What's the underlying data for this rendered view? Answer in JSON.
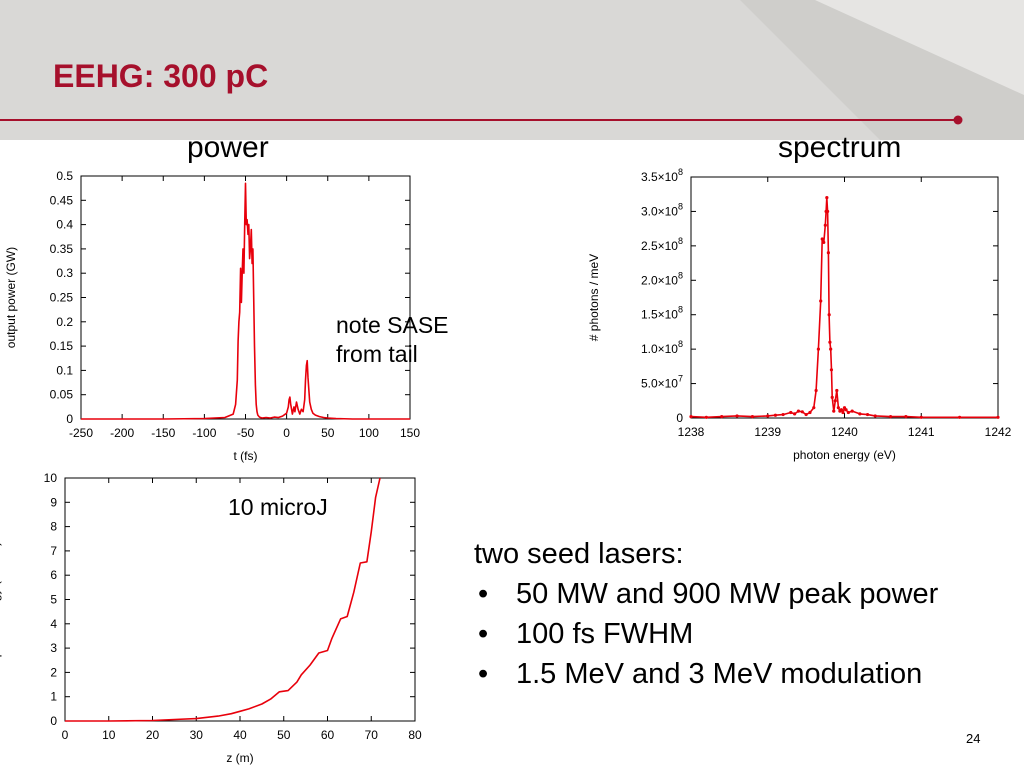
{
  "slide": {
    "title": "EEHG: 300 pC",
    "power_label": "power",
    "spectrum_label": "spectrum",
    "sase_note_line1": "note SASE",
    "sase_note_line2": "from tail",
    "energy_note": "10 microJ",
    "bullets_intro": "two seed lasers:",
    "bullets": [
      "50 MW and 900 MW peak power",
      "100 fs FWHM",
      "1.5 MeV and 3 MeV modulation"
    ],
    "bullet_marker": "•",
    "page_number": "24",
    "colors": {
      "title": "#a6102c",
      "rule": "#a6102c",
      "header_band": "#d9d8d6",
      "trace": "#e8000b"
    }
  },
  "chart_data": [
    {
      "type": "line",
      "xlabel": "t (fs)",
      "ylabel": "output power (GW)",
      "xlim": [
        -250,
        150
      ],
      "ylim": [
        0,
        0.5
      ],
      "xticks": [
        -250,
        -200,
        -150,
        -100,
        -50,
        0,
        50,
        100,
        150
      ],
      "xtick_labels": [
        "-250",
        "-200",
        "-150",
        "-100",
        "-50",
        "0",
        "50",
        "100",
        "150"
      ],
      "yticks": [
        0,
        0.05,
        0.1,
        0.15,
        0.2,
        0.25,
        0.3,
        0.35,
        0.4,
        0.45,
        0.5
      ],
      "ytick_labels": [
        "0",
        "0.05",
        "0.1",
        "0.15",
        "0.2",
        "0.25",
        "0.3",
        "0.35",
        "0.4",
        "0.45",
        "0.5"
      ],
      "series": [
        {
          "x": [
            -250,
            -200,
            -150,
            -100,
            -75,
            -65,
            -62,
            -60,
            -59,
            -58,
            -57,
            -56,
            -55,
            -54,
            -53,
            -52,
            -51,
            -50,
            -49,
            -48,
            -47,
            -46,
            -45,
            -44,
            -43,
            -42,
            -41,
            -40,
            -39,
            -38,
            -37,
            -36,
            -35,
            -33,
            -30,
            -25,
            -20,
            -15,
            -10,
            -5,
            0,
            2,
            3,
            4,
            5,
            6,
            7,
            9,
            10,
            12,
            14,
            16,
            18,
            20,
            22,
            23,
            24,
            25,
            26,
            28,
            30,
            32,
            35,
            40,
            45,
            50,
            60,
            80,
            100,
            150
          ],
          "y": [
            0,
            0,
            0,
            0.001,
            0.003,
            0.01,
            0.03,
            0.08,
            0.16,
            0.2,
            0.22,
            0.31,
            0.24,
            0.3,
            0.35,
            0.3,
            0.4,
            0.485,
            0.4,
            0.41,
            0.38,
            0.4,
            0.33,
            0.35,
            0.39,
            0.32,
            0.35,
            0.25,
            0.15,
            0.07,
            0.03,
            0.015,
            0.008,
            0.004,
            0.002,
            0.003,
            0.002,
            0.004,
            0.003,
            0.006,
            0.012,
            0.025,
            0.04,
            0.045,
            0.03,
            0.02,
            0.01,
            0.025,
            0.015,
            0.035,
            0.02,
            0.01,
            0.02,
            0.015,
            0.04,
            0.08,
            0.11,
            0.12,
            0.085,
            0.035,
            0.02,
            0.012,
            0.008,
            0.005,
            0.003,
            0.002,
            0.001,
            0,
            0,
            0
          ]
        }
      ]
    },
    {
      "type": "line",
      "xlabel": "photon energy (eV)",
      "ylabel": "# photons / meV",
      "xlim": [
        1238,
        1242
      ],
      "ylim": [
        0,
        350000000
      ],
      "xticks": [
        1238,
        1239,
        1240,
        1241,
        1242
      ],
      "xtick_labels": [
        "1238",
        "1239",
        "1240",
        "1241",
        "1242"
      ],
      "yticks": [
        0,
        50000000,
        100000000,
        150000000,
        200000000,
        250000000,
        300000000,
        350000000
      ],
      "ytick_labels": [
        {
          "mant": "0",
          "exp": ""
        },
        {
          "mant": "5.0×10",
          "exp": "7"
        },
        {
          "mant": "1.0×10",
          "exp": "8"
        },
        {
          "mant": "1.5×10",
          "exp": "8"
        },
        {
          "mant": "2.0×10",
          "exp": "8"
        },
        {
          "mant": "2.5×10",
          "exp": "8"
        },
        {
          "mant": "3.0×10",
          "exp": "8"
        },
        {
          "mant": "3.5×10",
          "exp": "8"
        }
      ],
      "series": [
        {
          "x": [
            1238,
            1238.2,
            1238.4,
            1238.6,
            1238.8,
            1239,
            1239.1,
            1239.2,
            1239.3,
            1239.35,
            1239.4,
            1239.45,
            1239.5,
            1239.55,
            1239.6,
            1239.63,
            1239.66,
            1239.69,
            1239.71,
            1239.73,
            1239.75,
            1239.76,
            1239.77,
            1239.78,
            1239.79,
            1239.8,
            1239.81,
            1239.82,
            1239.83,
            1239.84,
            1239.86,
            1239.88,
            1239.9,
            1239.92,
            1239.94,
            1239.96,
            1239.98,
            1240,
            1240.02,
            1240.05,
            1240.1,
            1240.2,
            1240.3,
            1240.4,
            1240.6,
            1240.8,
            1241,
            1241.5,
            1242
          ],
          "y": [
            2000000,
            1000000,
            2000000,
            3000000,
            2000000,
            3000000,
            4000000,
            5000000,
            8000000,
            6000000,
            10000000,
            9000000,
            5000000,
            8000000,
            15000000,
            40000000,
            100000000,
            170000000,
            260000000,
            255000000,
            280000000,
            300000000,
            320000000,
            300000000,
            240000000,
            150000000,
            110000000,
            100000000,
            70000000,
            30000000,
            10000000,
            25000000,
            40000000,
            15000000,
            10000000,
            12000000,
            8000000,
            15000000,
            12000000,
            8000000,
            10000000,
            6000000,
            5000000,
            3000000,
            2000000,
            2000000,
            1000000,
            1000000,
            1000000
          ]
        }
      ]
    },
    {
      "type": "line",
      "xlabel": "z (m)",
      "ylabel": "pulse energy (microJ)",
      "xlim": [
        0,
        80
      ],
      "ylim": [
        0,
        10
      ],
      "xticks": [
        0,
        10,
        20,
        30,
        40,
        50,
        60,
        70,
        80
      ],
      "xtick_labels": [
        "0",
        "10",
        "20",
        "30",
        "40",
        "50",
        "60",
        "70",
        "80"
      ],
      "yticks": [
        0,
        1,
        2,
        3,
        4,
        5,
        6,
        7,
        8,
        9,
        10
      ],
      "ytick_labels": [
        "0",
        "1",
        "2",
        "3",
        "4",
        "5",
        "6",
        "7",
        "8",
        "9",
        "10"
      ],
      "series": [
        {
          "x": [
            0,
            10,
            20,
            25,
            30,
            35,
            38,
            40,
            42,
            45,
            47,
            49,
            51,
            53,
            54,
            56,
            58,
            60,
            61,
            63,
            64.5,
            66,
            67.5,
            69,
            70,
            71,
            72
          ],
          "y": [
            0,
            0,
            0.02,
            0.06,
            0.1,
            0.2,
            0.3,
            0.4,
            0.5,
            0.7,
            0.9,
            1.2,
            1.25,
            1.6,
            1.9,
            2.3,
            2.8,
            2.9,
            3.4,
            4.2,
            4.3,
            5.3,
            6.5,
            6.55,
            7.8,
            9.2,
            10
          ]
        }
      ]
    }
  ]
}
